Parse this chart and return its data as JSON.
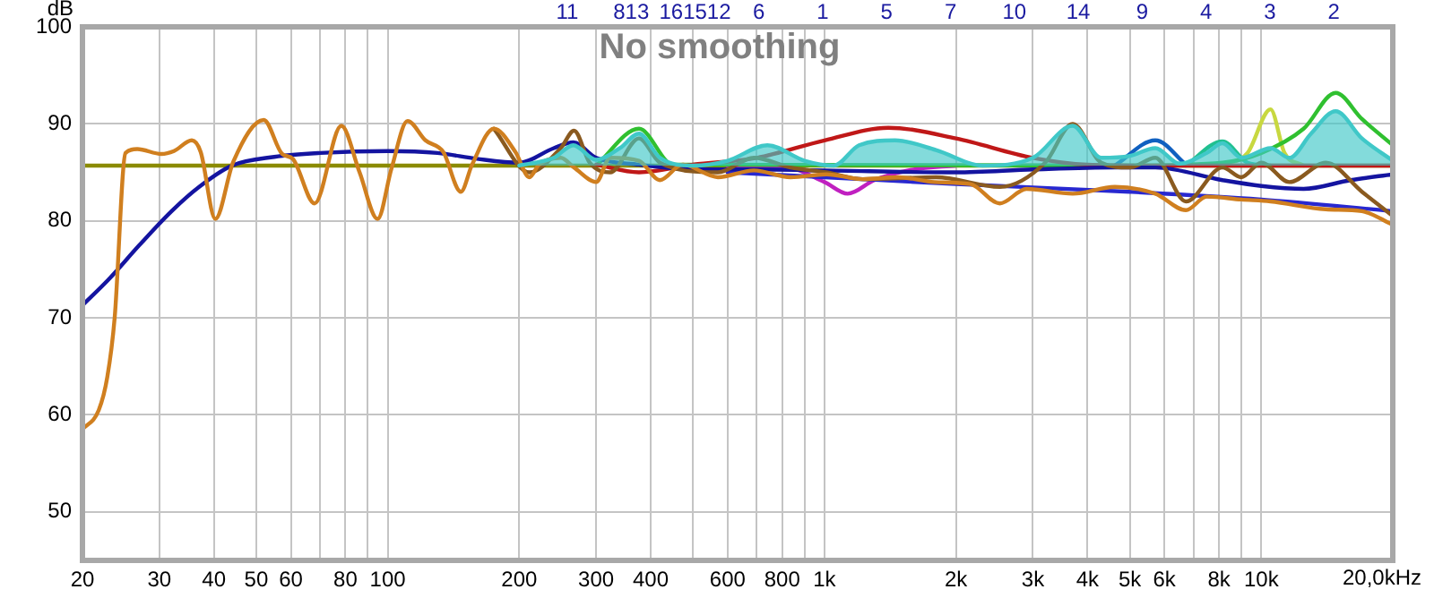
{
  "chart_data": {
    "type": "line",
    "title": "No smoothing",
    "ylabel": "dB",
    "log": "x",
    "grid": true,
    "marker": "none",
    "line_style": "solid",
    "xlim": [
      20,
      20000
    ],
    "ylim": [
      45,
      100
    ],
    "xticks": [
      20,
      30,
      40,
      50,
      60,
      {
        "value": 70,
        "label": null
      },
      80,
      {
        "value": 90,
        "label": null
      },
      100,
      200,
      300,
      400,
      {
        "value": 500,
        "label": null
      },
      600,
      {
        "value": 700,
        "label": null
      },
      800,
      {
        "value": 900,
        "label": null
      },
      {
        "value": 1000,
        "label": "1k"
      },
      {
        "value": 2000,
        "label": "2k"
      },
      {
        "value": 3000,
        "label": "3k"
      },
      {
        "value": 4000,
        "label": "4k"
      },
      {
        "value": 5000,
        "label": "5k"
      },
      {
        "value": 6000,
        "label": "6k"
      },
      {
        "value": 7000,
        "label": null
      },
      {
        "value": 8000,
        "label": "8k"
      },
      {
        "value": 9000,
        "label": null
      },
      {
        "value": 10000,
        "label": "10k"
      },
      {
        "value": 20000,
        "label": null
      }
    ],
    "xlabel": "20,0kHz",
    "yticks": [
      50,
      60,
      70,
      80,
      90,
      100
    ],
    "annotations": [
      "11",
      "813",
      "161512",
      "6",
      "1",
      "5",
      "7",
      "10",
      "14",
      "9",
      "4",
      "3",
      "2"
    ],
    "series": [
      {
        "color": "#40c8c8",
        "x": [
          200,
          240,
          266,
          300,
          340,
          376,
          420,
          500,
          600,
          740,
          900,
          1050,
          1200,
          1450,
          1800,
          2300,
          3000,
          3700,
          4300,
          5000,
          5720,
          6500,
          7500,
          8150,
          9000,
          10500,
          11600,
          13000,
          14800,
          17000,
          20000
        ],
        "values": [
          85.7,
          86.5,
          87.8,
          86.3,
          87.5,
          89,
          86.5,
          85.7,
          86.2,
          87.8,
          86.2,
          85.7,
          87.8,
          88.3,
          87.3,
          85.7,
          86.5,
          89.8,
          86.5,
          86.7,
          87.5,
          85.9,
          87,
          88,
          86.5,
          87.5,
          86.5,
          89,
          91.3,
          88.5,
          86.2
        ],
        "lower": [
          85.7,
          85.7,
          85.7,
          85.7,
          85.7,
          85.7,
          85.7,
          85.7,
          85.7,
          85.7,
          85.7,
          85.7,
          85.7,
          85.7,
          85.7,
          85.7,
          85.7,
          85.7,
          85.7,
          85.7,
          85.7,
          85.7,
          85.7,
          85.7,
          85.7,
          85.7,
          85.7,
          85.7,
          85.7,
          85.7,
          85.7
        ],
        "upper": [
          85.7,
          86.5,
          87.8,
          86.3,
          87.5,
          89,
          86.5,
          85.7,
          86.2,
          87.8,
          86.2,
          85.7,
          87.8,
          88.3,
          87.3,
          85.7,
          86.5,
          89.8,
          86.5,
          86.7,
          87.5,
          85.9,
          87,
          88,
          86.5,
          87.5,
          86.5,
          89,
          91.3,
          88.5,
          86.2
        ]
      },
      {
        "color": "#d07f1f",
        "x": [
          20,
          21.8,
          22.8,
          23.7,
          25.1,
          26.7,
          30.3,
          32.4,
          35.6,
          37.3,
          40.3,
          44.3,
          52,
          57.3,
          60.6,
          68,
          78.3,
          86.2,
          94.8,
          102,
          111,
          122,
          134,
          147,
          156,
          175,
          196,
          211,
          222,
          249,
          267,
          300,
          323,
          376,
          420,
          473,
          570,
          689,
          836,
          1010,
          1223,
          1475,
          1785,
          2157,
          2520,
          2900,
          3700,
          4620,
          5720,
          6720,
          7500,
          9000,
          10500,
          14050,
          17000,
          20000
        ],
        "values": [
          58.5,
          60.5,
          63.9,
          70,
          87,
          87.4,
          86.9,
          87.2,
          88.3,
          87.1,
          80.2,
          86.1,
          90.4,
          86.9,
          86.4,
          81.8,
          89.8,
          85,
          80.2,
          85.4,
          90.3,
          88.3,
          87.1,
          83,
          85.8,
          89.5,
          87.1,
          84.5,
          85.8,
          86.5,
          85.5,
          84,
          86.5,
          86.2,
          84.2,
          85.8,
          84.5,
          85.2,
          84.5,
          84.8,
          84.3,
          84.5,
          84,
          83.8,
          81.8,
          83.3,
          82.8,
          83.5,
          82.8,
          81.1,
          82.5,
          82.2,
          82,
          81.2,
          81,
          79.6
        ]
      },
      {
        "color": "#8a5a1f",
        "x": [
          175,
          211,
          249,
          267,
          290,
          323,
          376,
          420,
          570,
          689,
          836,
          1010,
          1223,
          1800,
          2520,
          3200,
          3700,
          4300,
          5000,
          5720,
          6720,
          8150,
          9000,
          10000,
          11600,
          14050,
          17000,
          20000
        ],
        "values": [
          89.5,
          85,
          87.5,
          89.3,
          86,
          85,
          88.5,
          86,
          85,
          86.5,
          85.5,
          85,
          84.3,
          84.5,
          83.5,
          86,
          90,
          86,
          85.5,
          86.5,
          82,
          85.5,
          84.5,
          86,
          84,
          86,
          83,
          80.5
        ]
      },
      {
        "color": "#1414a0",
        "x": [
          20,
          23,
          27,
          32,
          37,
          44,
          55,
          70,
          100,
          130,
          160,
          200,
          240,
          266,
          300,
          376,
          500,
          700,
          1000,
          2000,
          3000,
          4620,
          5720,
          8150,
          10000,
          12500,
          16000,
          20000
        ],
        "values": [
          71.3,
          74,
          77.5,
          81,
          83.5,
          85.7,
          86.6,
          87,
          87.2,
          87,
          86.4,
          86,
          87.5,
          88.1,
          86.5,
          85.8,
          85.3,
          85.3,
          85.2,
          85,
          85.3,
          85.5,
          85.5,
          84.2,
          83.6,
          83.3,
          84.2,
          84.8
        ]
      },
      {
        "color": "#2828d0",
        "x": [
          600,
          1000,
          2000,
          5000,
          10000,
          20000
        ],
        "values": [
          85,
          84.5,
          83.8,
          83,
          82.2,
          81
        ]
      },
      {
        "color": "#c01818",
        "x": [
          300,
          376,
          500,
          700,
          1000,
          1400,
          2000,
          3000,
          4000,
          6000,
          20000
        ],
        "values": [
          85.8,
          85,
          85.8,
          86.5,
          88.3,
          89.6,
          88.5,
          86.5,
          85.8,
          85.7,
          85.7
        ]
      },
      {
        "color": "#30c030",
        "x": [
          300,
          376,
          450,
          5000,
          8150,
          10000,
          12500,
          14800,
          17000,
          20000
        ],
        "values": [
          85.7,
          89.5,
          85.8,
          85.7,
          86,
          87,
          89.5,
          93.2,
          90.5,
          87.8
        ]
      },
      {
        "color": "#20c090",
        "x": [
          6720,
          8150,
          9300,
          10500
        ],
        "values": [
          85.7,
          88.2,
          86,
          85.7
        ]
      },
      {
        "color": "#c8d840",
        "x": [
          8150,
          9300,
          10500,
          11300,
          12500
        ],
        "values": [
          85.7,
          87,
          91.5,
          87,
          85.7
        ]
      },
      {
        "color": "#1060c0",
        "x": [
          4620,
          5720,
          6720
        ],
        "values": [
          85.7,
          88.3,
          85.8
        ]
      },
      {
        "color": "#c020c0",
        "x": [
          600,
          800,
          1000,
          1130,
          1300,
          1600,
          2000
        ],
        "values": [
          85.5,
          85.6,
          84,
          82.8,
          84.2,
          85.3,
          85.7
        ]
      },
      {
        "color": "#8b8b00",
        "x": [
          20,
          20000
        ],
        "values": [
          85.7,
          85.7
        ]
      }
    ]
  }
}
